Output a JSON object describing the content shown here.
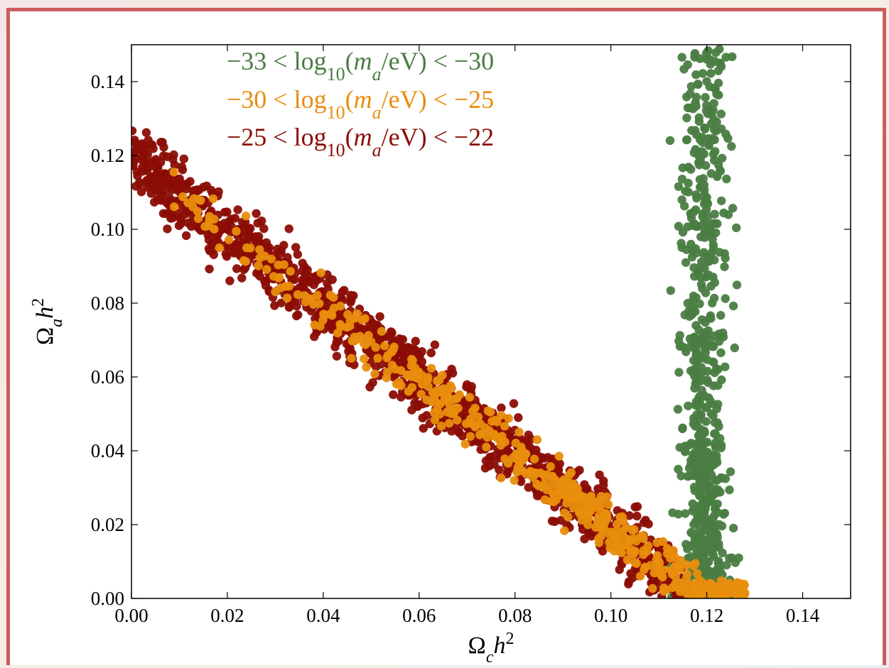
{
  "colors": {
    "green": "#4a7d42",
    "orange": "#e88d0d",
    "darkred": "#8b0d05",
    "frame": "#cd5c5c"
  },
  "chart_data": {
    "type": "scatter",
    "title": "",
    "xlabel": {
      "base": "Ω",
      "sub": "c",
      "var": "h",
      "sup": "2"
    },
    "ylabel": {
      "base": "Ω",
      "sub": "a",
      "var": "h",
      "sup": "2"
    },
    "xlim": [
      0.0,
      0.15
    ],
    "ylim": [
      0.0,
      0.15
    ],
    "xticks": [
      0.0,
      0.02,
      0.04,
      0.06,
      0.08,
      0.1,
      0.12,
      0.14
    ],
    "yticks": [
      0.0,
      0.02,
      0.04,
      0.06,
      0.08,
      0.1,
      0.12,
      0.14
    ],
    "xtick_labels": [
      "0.00",
      "0.02",
      "0.04",
      "0.06",
      "0.08",
      "0.10",
      "0.12",
      "0.14"
    ],
    "ytick_labels": [
      "0.00",
      "0.02",
      "0.04",
      "0.06",
      "0.08",
      "0.10",
      "0.12",
      "0.14"
    ],
    "grid": false,
    "legend_position": "top-center",
    "series": [
      {
        "legend": {
          "lo": "−33",
          "hi": "−30",
          "mid": "log",
          "sub": "10",
          "arg_var": "m",
          "arg_sub": "a",
          "unit": "/eV)"
        },
        "color": "#4a7d42",
        "model": "vertical-band",
        "x_center": 0.1195,
        "x_spread": 0.0045,
        "y_range": [
          0.0,
          0.15
        ],
        "n_points": 700
      },
      {
        "legend": {
          "lo": "−30",
          "hi": "−25",
          "mid": "log",
          "sub": "10",
          "arg_var": "m",
          "arg_sub": "a",
          "unit": "/eV)"
        },
        "color": "#e88d0d",
        "model": "diagonal-band",
        "relation": "y = 0.119 - x",
        "x_range": [
          0.005,
          0.128
        ],
        "y_spread": 0.0035,
        "n_points": 520
      },
      {
        "legend": {
          "lo": "−25",
          "hi": "−22",
          "mid": "log",
          "sub": "10",
          "arg_var": "m",
          "arg_sub": "a",
          "unit": "/eV)"
        },
        "color": "#8b0d05",
        "model": "diagonal-band",
        "relation": "y = 0.119 - x",
        "x_range": [
          0.0,
          0.115
        ],
        "y_spread": 0.0045,
        "n_points": 1300
      }
    ]
  }
}
